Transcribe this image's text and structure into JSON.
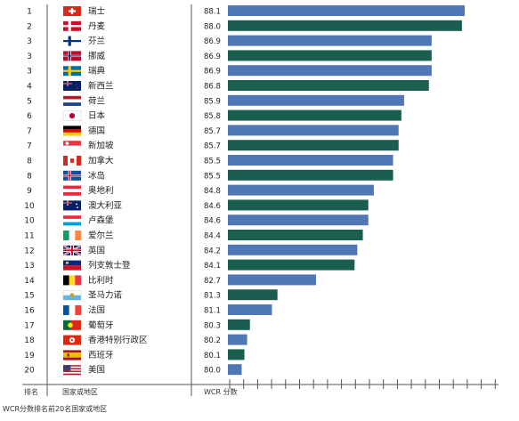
{
  "chart_data": {
    "type": "bar",
    "orientation": "horizontal",
    "title": "",
    "rows": [
      {
        "rank": "1",
        "country": "瑞士",
        "value": 88.1,
        "flag": "switzerland-flag"
      },
      {
        "rank": "2",
        "country": "丹麦",
        "value": 88.0,
        "flag": "denmark-flag"
      },
      {
        "rank": "3",
        "country": "芬兰",
        "value": 86.9,
        "flag": "finland-flag"
      },
      {
        "rank": "3",
        "country": "挪威",
        "value": 86.9,
        "flag": "norway-flag"
      },
      {
        "rank": "3",
        "country": "瑞典",
        "value": 86.9,
        "flag": "sweden-flag"
      },
      {
        "rank": "4",
        "country": "新西兰",
        "value": 86.8,
        "flag": "new-zealand-flag"
      },
      {
        "rank": "5",
        "country": "荷兰",
        "value": 85.9,
        "flag": "netherlands-flag"
      },
      {
        "rank": "6",
        "country": "日本",
        "value": 85.8,
        "flag": "japan-flag"
      },
      {
        "rank": "7",
        "country": "德国",
        "value": 85.7,
        "flag": "germany-flag"
      },
      {
        "rank": "7",
        "country": "新加坡",
        "value": 85.7,
        "flag": "singapore-flag"
      },
      {
        "rank": "8",
        "country": "加拿大",
        "value": 85.5,
        "flag": "canada-flag"
      },
      {
        "rank": "8",
        "country": "冰岛",
        "value": 85.5,
        "flag": "iceland-flag"
      },
      {
        "rank": "9",
        "country": "奥地利",
        "value": 84.8,
        "flag": "austria-flag"
      },
      {
        "rank": "10",
        "country": "澳大利亚",
        "value": 84.6,
        "flag": "australia-flag"
      },
      {
        "rank": "10",
        "country": "卢森堡",
        "value": 84.6,
        "flag": "luxembourg-flag"
      },
      {
        "rank": "11",
        "country": "爱尔兰",
        "value": 84.4,
        "flag": "ireland-flag"
      },
      {
        "rank": "12",
        "country": "英国",
        "value": 84.2,
        "flag": "united-kingdom-flag"
      },
      {
        "rank": "13",
        "country": "列支敦士登",
        "value": 84.1,
        "flag": "liechtenstein-flag"
      },
      {
        "rank": "14",
        "country": "比利时",
        "value": 82.7,
        "flag": "belgium-flag"
      },
      {
        "rank": "15",
        "country": "圣马力诺",
        "value": 81.3,
        "flag": "san-marino-flag"
      },
      {
        "rank": "16",
        "country": "法国",
        "value": 81.1,
        "flag": "france-flag"
      },
      {
        "rank": "17",
        "country": "葡萄牙",
        "value": 80.3,
        "flag": "portugal-flag"
      },
      {
        "rank": "18",
        "country": "香港特别行政区",
        "value": 80.2,
        "flag": "hong-kong-flag"
      },
      {
        "rank": "19",
        "country": "西班牙",
        "value": 80.1,
        "flag": "spain-flag"
      },
      {
        "rank": "20",
        "country": "美国",
        "value": 80.0,
        "flag": "united-states-flag"
      }
    ],
    "xlim": [
      79.5,
      88.3
    ],
    "colors": {
      "blue": "#4f77b5",
      "green": "#1b5e4f"
    },
    "column_labels": {
      "rank": "排名",
      "country": "国家或地区",
      "score": "WCR 分数"
    },
    "footnote": "WCR分数排名前20名国家或地区",
    "grid": false,
    "legend": "none"
  }
}
